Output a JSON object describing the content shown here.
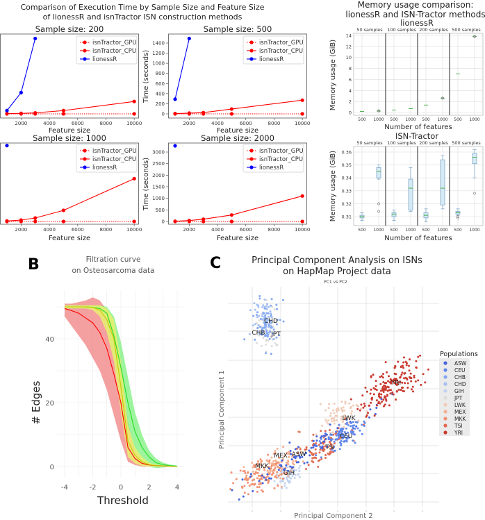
{
  "panel_a": {
    "title_line1": "Comparison of Execution Time by Sample Size and Feature Size",
    "title_line2": "of lionessR and isnTractor ISN construction methods",
    "ylabel": "Time (seconds)",
    "xlabel": "Feature size",
    "legend": [
      "isnTractor_GPU",
      "isnTractor_CPU",
      "lionessR"
    ]
  },
  "panel_memory": {
    "title_line1": "Memory usage comparison:",
    "title_line2": "lionessR and ISN-Tractor methods",
    "ylabel": "Memory usage (GiB)",
    "xlabel": "Number of features",
    "facets": [
      "50 samples",
      "100 samples",
      "200 samples",
      "500 samples"
    ],
    "xticks": [
      "500",
      "1000"
    ]
  },
  "panel_b": {
    "letter": "B",
    "title_line1": "Filtration curve",
    "title_line2": "on Osteosarcoma data",
    "xlabel": "Threshold",
    "ylabel": "# Edges"
  },
  "panel_c": {
    "letter": "C",
    "title_line1": "Principal Component Analysis on ISNs",
    "title_line2": "on HapMap Project data",
    "subtitle": "PC1 vs PC2",
    "xlabel": "Principal Component 2",
    "ylabel": "Principal Component 1",
    "legend_title": "Populations"
  },
  "chart_data": [
    {
      "type": "line",
      "title": "Sample size: 200",
      "xlabel": "Feature size",
      "ylabel": "",
      "xticks": [
        2000,
        4000,
        6000,
        8000,
        10000
      ],
      "yticks": [],
      "legend": "top-right",
      "series": [
        {
          "name": "isnTractor_GPU",
          "color": "#ff0000",
          "style": "dotted",
          "x": [
            1000,
            2000,
            3000,
            5000,
            10000
          ],
          "y": [
            0,
            0,
            0,
            0,
            0
          ]
        },
        {
          "name": "isnTractor_CPU",
          "color": "#ff0000",
          "style": "solid",
          "x": [
            1000,
            2000,
            3000,
            5000,
            10000
          ],
          "y": [
            5,
            10,
            20,
            65,
            245
          ]
        },
        {
          "name": "lionessR",
          "color": "#0000ff",
          "style": "solid",
          "x": [
            1000,
            2000,
            3000
          ],
          "y": [
            65,
            420,
            1490
          ]
        }
      ]
    },
    {
      "type": "line",
      "title": "Sample size: 500",
      "xlabel": "Feature size",
      "ylabel": "Time (seconds)",
      "xticks": [
        2000,
        4000,
        6000,
        8000,
        10000
      ],
      "yticks": [
        0,
        200,
        400,
        600,
        800,
        1000,
        1200,
        1400
      ],
      "legend": "top-right",
      "series": [
        {
          "name": "isnTractor_GPU",
          "color": "#ff0000",
          "style": "dotted",
          "x": [
            1000,
            2000,
            3000,
            5000,
            10000
          ],
          "y": [
            0,
            0,
            0,
            0,
            0
          ]
        },
        {
          "name": "isnTractor_CPU",
          "color": "#ff0000",
          "style": "solid",
          "x": [
            1000,
            2000,
            3000,
            5000,
            10000
          ],
          "y": [
            5,
            15,
            25,
            95,
            270
          ]
        },
        {
          "name": "lionessR",
          "color": "#0000ff",
          "style": "solid",
          "x": [
            1000,
            2000
          ],
          "y": [
            290,
            1490
          ]
        }
      ]
    },
    {
      "type": "line",
      "title": "Sample size: 1000",
      "xlabel": "Feature size",
      "ylabel": "",
      "xticks": [
        2000,
        4000,
        6000,
        8000,
        10000
      ],
      "yticks": [],
      "legend": "top-right",
      "series": [
        {
          "name": "isnTractor_GPU",
          "color": "#ff0000",
          "style": "dotted",
          "x": [
            1000,
            2000,
            3000,
            5000,
            10000
          ],
          "y": [
            0,
            0,
            0,
            0,
            0
          ]
        },
        {
          "name": "isnTractor_CPU",
          "color": "#ff0000",
          "style": "solid",
          "x": [
            1000,
            2000,
            3000,
            5000,
            10000
          ],
          "y": [
            20,
            60,
            150,
            480,
            1850
          ]
        },
        {
          "name": "lionessR",
          "color": "#0000ff",
          "style": "solid",
          "x": [
            1000
          ],
          "y": [
            3280
          ]
        }
      ]
    },
    {
      "type": "line",
      "title": "Sample size: 2000",
      "xlabel": "Feature size",
      "ylabel": "Time (seconds)",
      "xticks": [
        2000,
        4000,
        6000,
        8000,
        10000
      ],
      "yticks": [
        0,
        500,
        1000,
        1500,
        2000,
        2500,
        3000
      ],
      "legend": "top-right",
      "series": [
        {
          "name": "isnTractor_GPU",
          "color": "#ff0000",
          "style": "dotted",
          "x": [
            1000,
            2000,
            3000,
            5000,
            10000
          ],
          "y": [
            0,
            0,
            0,
            0,
            0
          ]
        },
        {
          "name": "isnTractor_CPU",
          "color": "#ff0000",
          "style": "solid",
          "x": [
            1000,
            2000,
            3000,
            5000,
            10000
          ],
          "y": [
            10,
            40,
            100,
            280,
            1100
          ]
        },
        {
          "name": "lionessR",
          "color": "#0000ff",
          "style": "solid",
          "x": [
            1000
          ],
          "y": [
            3270
          ]
        }
      ]
    },
    {
      "type": "box",
      "title": "lionessR",
      "ylabel": "Memory usage (GiB)",
      "xlabel": "Number of features",
      "yticks": [
        0,
        2,
        4,
        6,
        8,
        10,
        12,
        14
      ],
      "ylim": [
        -0.5,
        14.5
      ],
      "groups": [
        {
          "facet": "50 samples",
          "features": 500,
          "median": 0.2,
          "outliers": []
        },
        {
          "facet": "50 samples",
          "features": 1000,
          "median": 0.25,
          "outliers": [
            0.3
          ]
        },
        {
          "facet": "100 samples",
          "features": 500,
          "median": 0.45,
          "outliers": []
        },
        {
          "facet": "100 samples",
          "features": 1000,
          "median": 0.7,
          "outliers": []
        },
        {
          "facet": "200 samples",
          "features": 500,
          "median": 1.35,
          "outliers": []
        },
        {
          "facet": "200 samples",
          "features": 1000,
          "median": 2.6,
          "outliers": [
            2.6
          ]
        },
        {
          "facet": "500 samples",
          "features": 500,
          "median": 7.0,
          "outliers": []
        },
        {
          "facet": "500 samples",
          "features": 1000,
          "median": 13.8,
          "outliers": [
            13.8
          ]
        }
      ]
    },
    {
      "type": "box",
      "title": "ISN-Tractor",
      "ylabel": "Memory usage (GiB)",
      "xlabel": "Number of features",
      "yticks": [
        0.31,
        0.32,
        0.33,
        0.34,
        0.35,
        0.36
      ],
      "ylim": [
        0.3035,
        0.3645
      ],
      "groups": [
        {
          "facet": "50 samples",
          "features": 500,
          "whisker_low": 0.307,
          "q1": 0.309,
          "median": 0.31,
          "q3": 0.311,
          "whisker_high": 0.313,
          "outliers": []
        },
        {
          "facet": "50 samples",
          "features": 1000,
          "whisker_low": 0.339,
          "q1": 0.34,
          "median": 0.345,
          "q3": 0.348,
          "whisker_high": 0.35,
          "outliers": [
            0.32,
            0.314
          ]
        },
        {
          "facet": "100 samples",
          "features": 500,
          "whisker_low": 0.307,
          "q1": 0.31,
          "median": 0.312,
          "q3": 0.313,
          "whisker_high": 0.315,
          "outliers": []
        },
        {
          "facet": "100 samples",
          "features": 1000,
          "whisker_low": 0.314,
          "q1": 0.315,
          "median": 0.332,
          "q3": 0.339,
          "whisker_high": 0.348,
          "outliers": []
        },
        {
          "facet": "200 samples",
          "features": 500,
          "whisker_low": 0.306,
          "q1": 0.309,
          "median": 0.311,
          "q3": 0.313,
          "whisker_high": 0.316,
          "outliers": []
        },
        {
          "facet": "200 samples",
          "features": 1000,
          "whisker_low": 0.316,
          "q1": 0.319,
          "median": 0.332,
          "q3": 0.354,
          "whisker_high": 0.357,
          "outliers": []
        },
        {
          "facet": "500 samples",
          "features": 500,
          "whisker_low": 0.311,
          "q1": 0.312,
          "median": 0.313,
          "q3": 0.314,
          "whisker_high": 0.316,
          "outliers": [
            0.31,
            0.309
          ]
        },
        {
          "facet": "500 samples",
          "features": 1000,
          "whisker_low": 0.34,
          "q1": 0.351,
          "median": 0.356,
          "q3": 0.359,
          "whisker_high": 0.362,
          "outliers": [
            0.328
          ]
        }
      ]
    },
    {
      "type": "area",
      "title": "Filtration curve on Osteosarcoma data",
      "xlabel": "Threshold",
      "ylabel": "# Edges",
      "xticks": [
        -4,
        -2,
        0,
        2,
        4
      ],
      "yticks": [
        0,
        20,
        40
      ],
      "xlim": [
        -4.3,
        4.3
      ],
      "ylim": [
        -2,
        56
      ],
      "x": [
        -4,
        -3.5,
        -3,
        -2.5,
        -2,
        -1.5,
        -1,
        -0.5,
        0,
        0.5,
        1,
        1.5,
        2,
        2.5,
        3,
        3.5,
        4
      ],
      "series": [
        {
          "color": "#ff0000",
          "band_color": "#f08080",
          "mean": [
            49.5,
            48.8,
            48,
            46.5,
            45,
            42,
            37,
            29,
            20,
            6,
            2.5,
            1,
            0.5,
            0.3,
            0.2,
            0.1,
            0
          ],
          "lower": [
            47,
            44,
            41,
            38,
            34,
            30,
            24,
            16,
            8,
            1.5,
            0.5,
            0,
            0,
            0,
            0,
            0,
            0
          ],
          "upper": [
            51,
            51,
            51.5,
            52,
            53,
            52,
            49,
            43,
            33,
            14,
            5,
            2,
            1,
            0.5,
            0.3,
            0.2,
            0.1
          ]
        },
        {
          "color": "#22dd22",
          "band_color": "#7cf07c",
          "mean": [
            50,
            50,
            50,
            50,
            49.8,
            49.5,
            48,
            41,
            31,
            20,
            11,
            6,
            3,
            1.2,
            0.6,
            0.3,
            0.1
          ],
          "lower": [
            49.5,
            49.5,
            49.5,
            49.5,
            49.5,
            49,
            45,
            35,
            24,
            12,
            5,
            1.5,
            0,
            -0.5,
            -0.3,
            0,
            0
          ],
          "upper": [
            50.5,
            50.5,
            50.5,
            50.5,
            50.5,
            50.5,
            50,
            47,
            39,
            28,
            17,
            10,
            5,
            2.5,
            1.2,
            0.6,
            0.3
          ]
        },
        {
          "color": "#c8c800",
          "band_color": "#e8f070",
          "mean": [
            50,
            50,
            50,
            50,
            49.8,
            49,
            46,
            40,
            25,
            8,
            3.5,
            1.5,
            0.6,
            0.3,
            0.2,
            0.1,
            0
          ],
          "lower": [
            49.5,
            49.5,
            49.5,
            49.5,
            49,
            47,
            42,
            33,
            17,
            3,
            1,
            0.2,
            0,
            0,
            0,
            0,
            0
          ],
          "upper": [
            50.5,
            50.5,
            50.5,
            50.5,
            50.5,
            50.5,
            49.5,
            46,
            33,
            13,
            6,
            3,
            1.2,
            0.6,
            0.3,
            0.2,
            0.1
          ]
        }
      ]
    },
    {
      "type": "scatter",
      "title": "PC1 vs PC2",
      "xlabel": "Principal Component 2",
      "ylabel": "Principal Component 1",
      "grid": true,
      "legend": "right",
      "populations": [
        {
          "name": "ASW",
          "color": "#4563dc"
        },
        {
          "name": "CEU",
          "color": "#6388ec"
        },
        {
          "name": "CHB",
          "color": "#84a8f4"
        },
        {
          "name": "CHD",
          "color": "#a3c0f5"
        },
        {
          "name": "GIH",
          "color": "#c3d3ef"
        },
        {
          "name": "JPT",
          "color": "#dcdcdc"
        },
        {
          "name": "LWK",
          "color": "#f0cbb8"
        },
        {
          "name": "MEX",
          "color": "#f5b093"
        },
        {
          "name": "MKK",
          "color": "#f09272"
        },
        {
          "name": "TSI",
          "color": "#e06a50"
        },
        {
          "name": "YRI",
          "color": "#c93a30"
        }
      ],
      "annotations": [
        "CHD",
        "CHB",
        "JPT",
        "YRI",
        "LWK",
        "CEU",
        "TSI",
        "MEX",
        "ASW",
        "MKK",
        "GIH"
      ]
    }
  ]
}
